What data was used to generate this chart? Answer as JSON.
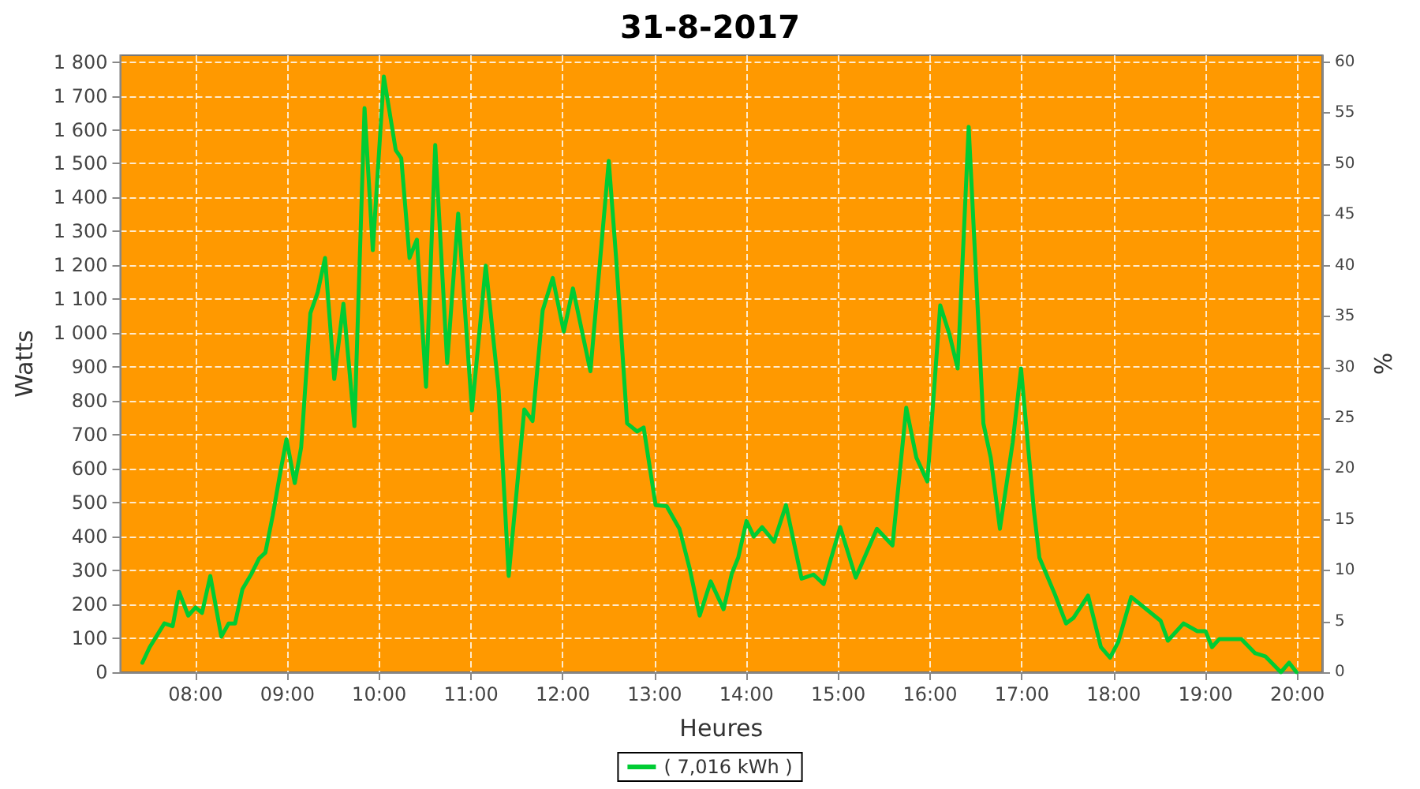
{
  "chart_data": {
    "type": "line",
    "title": "31-8-2017",
    "xlabel": "Heures",
    "ylabel": "Watts",
    "y2label": "%",
    "xlim": [
      7.18,
      20.27
    ],
    "xticks": [
      {
        "value": 8,
        "label": "08:00"
      },
      {
        "value": 9,
        "label": "09:00"
      },
      {
        "value": 10,
        "label": "10:00"
      },
      {
        "value": 11,
        "label": "11:00"
      },
      {
        "value": 12,
        "label": "12:00"
      },
      {
        "value": 13,
        "label": "13:00"
      },
      {
        "value": 14,
        "label": "14:00"
      },
      {
        "value": 15,
        "label": "15:00"
      },
      {
        "value": 16,
        "label": "16:00"
      },
      {
        "value": 17,
        "label": "17:00"
      },
      {
        "value": 18,
        "label": "18:00"
      },
      {
        "value": 19,
        "label": "19:00"
      },
      {
        "value": 20,
        "label": "20:00"
      }
    ],
    "ylim": [
      0,
      1820
    ],
    "yticks": [
      0,
      100,
      200,
      300,
      400,
      500,
      600,
      700,
      800,
      900,
      {
        "value": 1000,
        "label": "1 000"
      },
      {
        "value": 1100,
        "label": "1 100"
      },
      {
        "value": 1200,
        "label": "1 200"
      },
      {
        "value": 1300,
        "label": "1 300"
      },
      {
        "value": 1400,
        "label": "1 400"
      },
      {
        "value": 1500,
        "label": "1 500"
      },
      {
        "value": 1600,
        "label": "1 600"
      },
      {
        "value": 1700,
        "label": "1 700"
      },
      {
        "value": 1800,
        "label": "1 800"
      }
    ],
    "y2lim": [
      0,
      60.7
    ],
    "y2ticks": [
      0,
      5,
      10,
      15,
      20,
      25,
      30,
      35,
      40,
      45,
      50,
      55,
      60
    ],
    "grid": true,
    "legend": "bottom",
    "marker": "none",
    "line_style": "solid",
    "series": [
      {
        "name": "( 7,016 kWh )",
        "color": "#00cc33",
        "x": [
          7.42,
          7.5,
          7.66,
          7.75,
          7.82,
          7.92,
          8.0,
          8.07,
          8.16,
          8.28,
          8.36,
          8.43,
          8.51,
          8.61,
          8.69,
          8.76,
          8.84,
          8.92,
          8.99,
          9.08,
          9.15,
          9.25,
          9.33,
          9.41,
          9.51,
          9.61,
          9.73,
          9.84,
          9.93,
          10.05,
          10.18,
          10.24,
          10.33,
          10.41,
          10.51,
          10.61,
          10.74,
          10.86,
          11.01,
          11.16,
          11.3,
          11.41,
          11.58,
          11.67,
          11.78,
          11.89,
          12.01,
          12.11,
          12.3,
          12.5,
          12.58,
          12.7,
          12.81,
          12.88,
          13.01,
          13.13,
          13.27,
          13.38,
          13.49,
          13.61,
          13.75,
          13.84,
          13.91,
          14.0,
          14.08,
          14.17,
          14.3,
          14.43,
          14.6,
          14.73,
          14.84,
          15.02,
          15.19,
          15.42,
          15.59,
          15.74,
          15.85,
          15.97,
          16.11,
          16.21,
          16.3,
          16.42,
          16.58,
          16.66,
          16.76,
          16.9,
          16.99,
          17.13,
          17.19,
          17.36,
          17.48,
          17.56,
          17.72,
          17.86,
          17.96,
          18.05,
          18.19,
          18.51,
          18.59,
          18.76,
          18.91,
          19.0,
          19.07,
          19.15,
          19.39,
          19.54,
          19.65,
          19.82,
          19.91,
          19.99
        ],
        "values": [
          28,
          74,
          144,
          136,
          237,
          167,
          191,
          175,
          284,
          105,
          144,
          144,
          245,
          291,
          335,
          353,
          462,
          586,
          687,
          558,
          664,
          1059,
          1121,
          1222,
          865,
          1087,
          726,
          1664,
          1245,
          1757,
          1540,
          1516,
          1222,
          1276,
          842,
          1555,
          912,
          1353,
          772,
          1199,
          834,
          284,
          775,
          741,
          1067,
          1163,
          1005,
          1132,
          888,
          1508,
          1222,
          734,
          710,
          722,
          493,
          490,
          423,
          307,
          167,
          268,
          186,
          291,
          338,
          446,
          400,
          428,
          385,
          493,
          276,
          288,
          260,
          428,
          279,
          423,
          374,
          780,
          633,
          563,
          1082,
          997,
          896,
          1609,
          734,
          633,
          423,
          679,
          896,
          478,
          338,
          229,
          144,
          160,
          226,
          74,
          43,
          90,
          222,
          152,
          93,
          144,
          121,
          121,
          74,
          98,
          98,
          56,
          47,
          0,
          28,
          0
        ]
      }
    ]
  }
}
